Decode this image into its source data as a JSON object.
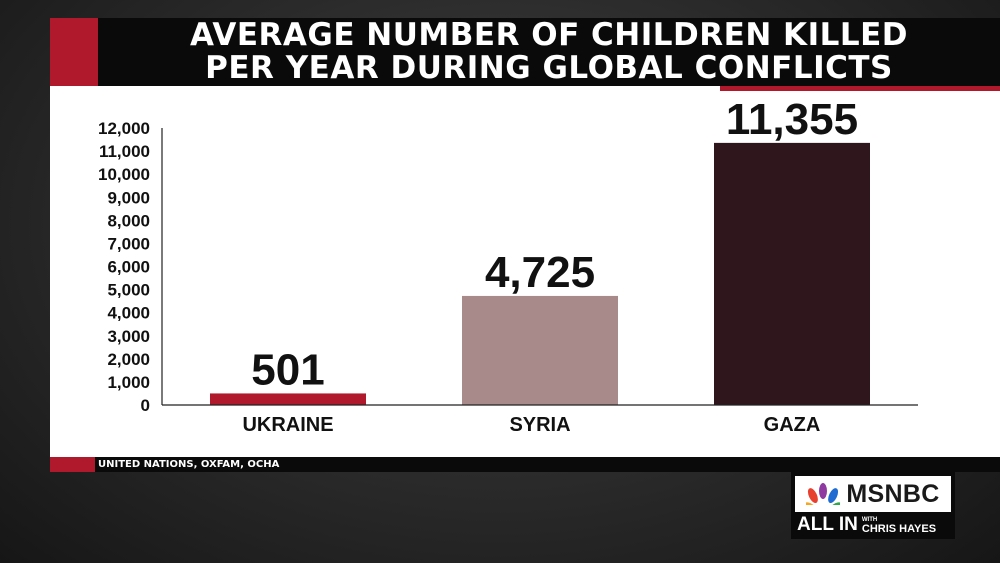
{
  "header": {
    "title_line1": "AVERAGE NUMBER OF CHILDREN KILLED",
    "title_line2": "PER YEAR DURING GLOBAL CONFLICTS"
  },
  "footer": {
    "source": "UNITED NATIONS, OXFAM, OCHA"
  },
  "brand": {
    "network": "MSNBC",
    "show": "ALL IN",
    "show_with": "WITH",
    "show_host": "CHRIS HAYES",
    "accent_color": "#b0192b"
  },
  "chart_data": {
    "type": "bar",
    "title": "AVERAGE NUMBER OF CHILDREN KILLED PER YEAR DURING GLOBAL CONFLICTS",
    "xlabel": "",
    "ylabel": "",
    "categories": [
      "UKRAINE",
      "SYRIA",
      "GAZA"
    ],
    "values": [
      501,
      4725,
      11355
    ],
    "data_labels": [
      "501",
      "4,725",
      "11,355"
    ],
    "colors": [
      "#b0192b",
      "#a88a8b",
      "#2e161c"
    ],
    "ylim": [
      0,
      12000
    ],
    "yticks": [
      0,
      1000,
      2000,
      3000,
      4000,
      5000,
      6000,
      7000,
      8000,
      9000,
      10000,
      11000,
      12000
    ],
    "ytick_labels": [
      "0",
      "1,000",
      "2,000",
      "3,000",
      "4,000",
      "5,000",
      "6,000",
      "7,000",
      "8,000",
      "9,000",
      "10,000",
      "11,000",
      "12,000"
    ],
    "grid": false,
    "legend": "none"
  }
}
